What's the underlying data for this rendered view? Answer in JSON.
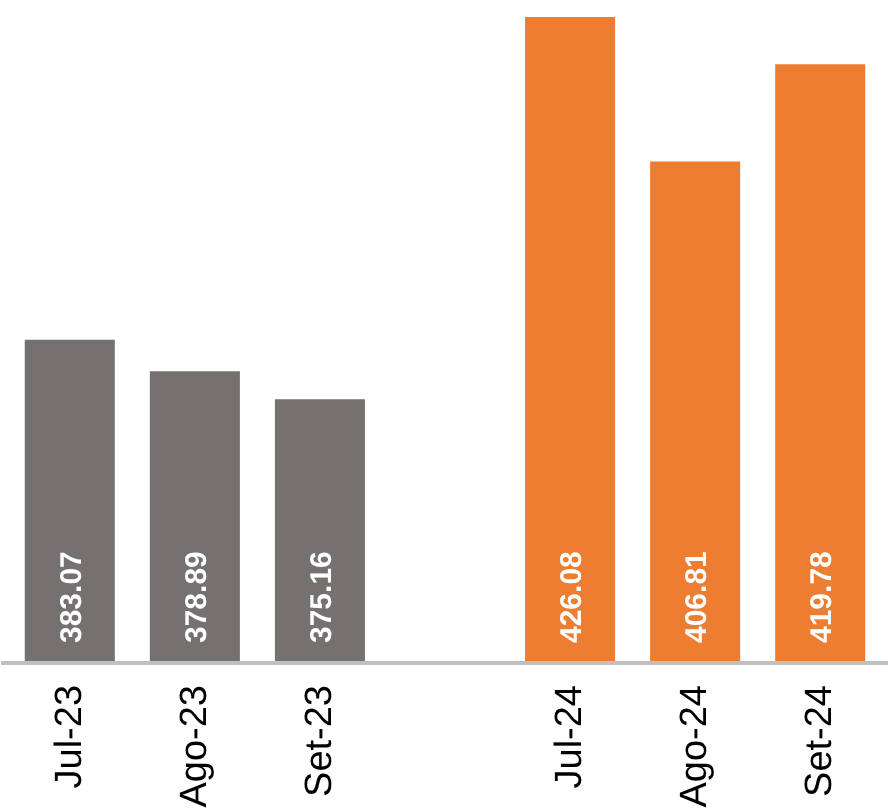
{
  "chart_data": {
    "type": "bar",
    "categories": [
      "Jul-23",
      "Ago-23",
      "Set-23",
      null,
      "Jul-24",
      "Ago-24",
      "Set-24"
    ],
    "values": [
      383.07,
      378.89,
      375.16,
      null,
      426.08,
      406.81,
      419.78
    ],
    "colors": [
      "#767171",
      "#767171",
      "#767171",
      "#767171",
      "#ed7d31",
      "#ed7d31",
      "#ed7d31"
    ],
    "ylim": [
      340,
      426.08
    ],
    "data_labels": true,
    "tick_labels": "x",
    "grid": false
  }
}
